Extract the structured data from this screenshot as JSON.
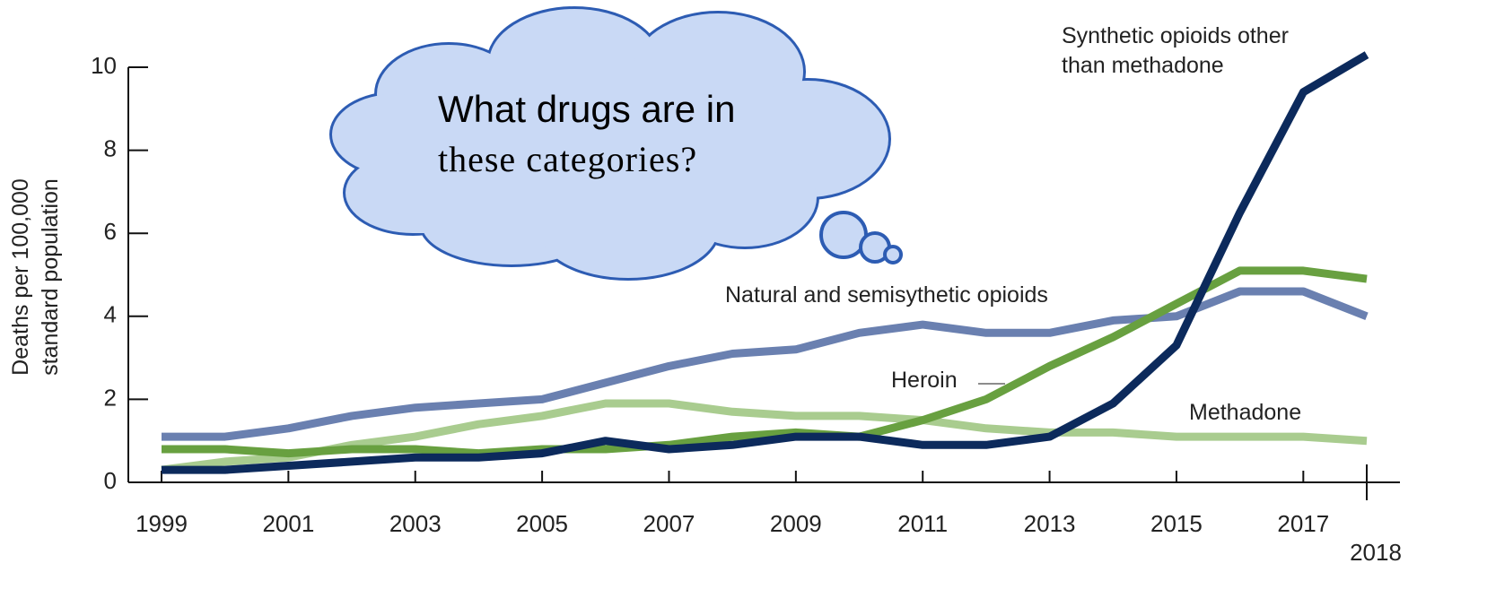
{
  "chart_data": {
    "type": "line",
    "ylabel": "Deaths per 100,000 standard population",
    "annotation": [
      "What drugs are in",
      "these categories?"
    ],
    "x": [
      1999,
      2000,
      2001,
      2002,
      2003,
      2004,
      2005,
      2006,
      2007,
      2008,
      2009,
      2010,
      2011,
      2012,
      2013,
      2014,
      2015,
      2016,
      2017,
      2018
    ],
    "xlim": [
      1999,
      2018
    ],
    "xticks": [
      1999,
      2001,
      2003,
      2005,
      2007,
      2009,
      2011,
      2013,
      2015,
      2017,
      2018
    ],
    "ylim": [
      0,
      10
    ],
    "yticks": [
      0,
      2,
      4,
      6,
      8,
      10
    ],
    "grid": false,
    "series": [
      {
        "name": "Natural and semisythetic opioids",
        "color": "#6a80b0",
        "values": [
          1.1,
          1.1,
          1.3,
          1.6,
          1.8,
          1.9,
          2.0,
          2.4,
          2.8,
          3.1,
          3.2,
          3.6,
          3.8,
          3.6,
          3.6,
          3.9,
          4.0,
          4.6,
          4.6,
          4.0
        ]
      },
      {
        "name": "Methadone",
        "color": "#a9cc8f",
        "values": [
          0.3,
          0.5,
          0.6,
          0.9,
          1.1,
          1.4,
          1.6,
          1.9,
          1.9,
          1.7,
          1.6,
          1.6,
          1.5,
          1.3,
          1.2,
          1.2,
          1.1,
          1.1,
          1.1,
          1.0
        ]
      },
      {
        "name": "Heroin",
        "color": "#68a040",
        "values": [
          0.8,
          0.8,
          0.7,
          0.8,
          0.8,
          0.7,
          0.8,
          0.8,
          0.9,
          1.1,
          1.2,
          1.1,
          1.5,
          2.0,
          2.8,
          3.5,
          4.3,
          5.1,
          5.1,
          4.9
        ]
      },
      {
        "name": "Synthetic opioids other than methadone",
        "color": "#0c2a5c",
        "values": [
          0.3,
          0.3,
          0.4,
          0.5,
          0.6,
          0.6,
          0.7,
          1.0,
          0.8,
          0.9,
          1.1,
          1.1,
          0.9,
          0.9,
          1.1,
          1.9,
          3.3,
          6.5,
          9.4,
          10.3
        ]
      }
    ]
  }
}
